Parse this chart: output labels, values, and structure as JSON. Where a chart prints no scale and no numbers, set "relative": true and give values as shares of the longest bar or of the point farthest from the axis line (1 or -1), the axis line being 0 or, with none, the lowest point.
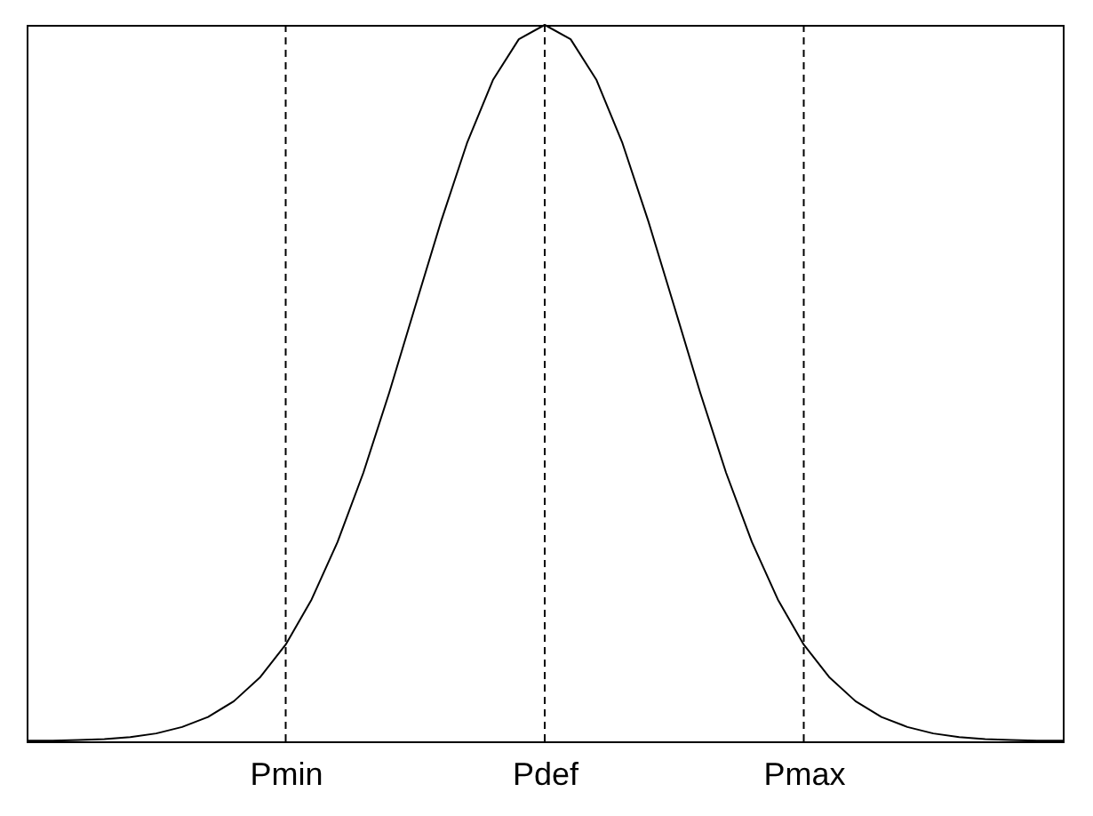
{
  "chart_data": {
    "type": "line",
    "relative": true,
    "categories": [
      null,
      null,
      null,
      null,
      null,
      null,
      null,
      null,
      null,
      null,
      "Pmin",
      null,
      null,
      null,
      null,
      null,
      null,
      null,
      null,
      null,
      "Pdef",
      null,
      null,
      null,
      null,
      null,
      null,
      null,
      null,
      null,
      "Pmax",
      null,
      null,
      null,
      null,
      null,
      null,
      null,
      null,
      null,
      null
    ],
    "series": [
      {
        "color": "#000000",
        "values": [
          0.001,
          0.001,
          0.002,
          0.003,
          0.006,
          0.011,
          0.02,
          0.034,
          0.056,
          0.089,
          0.135,
          0.198,
          0.278,
          0.375,
          0.487,
          0.607,
          0.726,
          0.835,
          0.923,
          0.98,
          1,
          0.98,
          0.923,
          0.835,
          0.726,
          0.607,
          0.487,
          0.375,
          0.278,
          0.198,
          0.135,
          0.089,
          0.056,
          0.034,
          0.02,
          0.011,
          0.006,
          0.003,
          0.002,
          0.001,
          0.001
        ]
      }
    ],
    "ref_lines": [
      {
        "axis": "x",
        "value": "Pmin",
        "line_style": "dashed",
        "color": "#000000"
      },
      {
        "axis": "x",
        "value": "Pdef",
        "line_style": "dashed",
        "color": "#000000"
      },
      {
        "axis": "x",
        "value": "Pmax",
        "line_style": "dashed",
        "color": "#000000"
      }
    ],
    "tick_labels": "x",
    "grid": false,
    "marker": "none",
    "line_style": "solid"
  }
}
